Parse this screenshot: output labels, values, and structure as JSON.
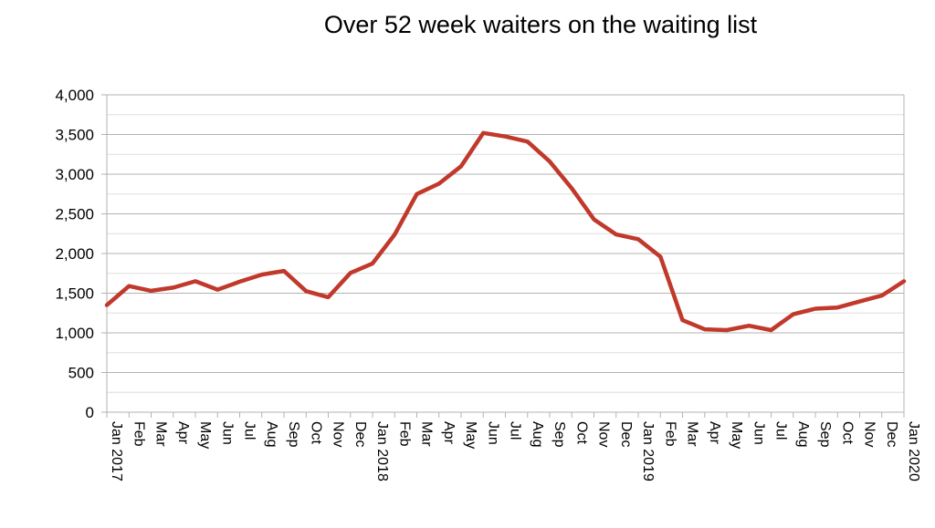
{
  "chart_data": {
    "type": "line",
    "title": "Over 52 week waiters on the waiting list",
    "xlabel": "",
    "ylabel": "",
    "ylim": [
      0,
      4000
    ],
    "y_ticks": [
      "0",
      "500",
      "1,000",
      "1,500",
      "2,000",
      "2,500",
      "3,000",
      "3,500",
      "4,000"
    ],
    "y_tick_values": [
      0,
      500,
      1000,
      1500,
      2000,
      2500,
      3000,
      3500,
      4000
    ],
    "grid": true,
    "legend": "none",
    "line_color": "#c0392b",
    "categories": [
      "Jan  2017",
      "Feb",
      "Mar",
      "Apr",
      "May",
      "Jun",
      "Jul",
      "Aug",
      "Sep",
      "Oct",
      "Nov",
      "Dec",
      "Jan  2018",
      "Feb",
      "Mar",
      "Apr",
      "May",
      "Jun",
      "Jul",
      "Aug",
      "Sep",
      "Oct",
      "Nov",
      "Dec",
      "Jan  2019",
      "Feb",
      "Mar",
      "Apr",
      "May",
      "Jun",
      "Jul",
      "Aug",
      "Sep",
      "Oct",
      "Nov",
      "Dec",
      "Jan  2020"
    ],
    "series": [
      {
        "values": [
          1350,
          1590,
          1530,
          1570,
          1650,
          1545,
          1645,
          1735,
          1780,
          1525,
          1450,
          1755,
          1875,
          2240,
          2750,
          2880,
          3100,
          3520,
          3475,
          3410,
          3160,
          2820,
          2430,
          2240,
          2180,
          1960,
          1160,
          1045,
          1035,
          1090,
          1035,
          1235,
          1305,
          1320,
          1395,
          1470,
          1650
        ]
      }
    ]
  }
}
